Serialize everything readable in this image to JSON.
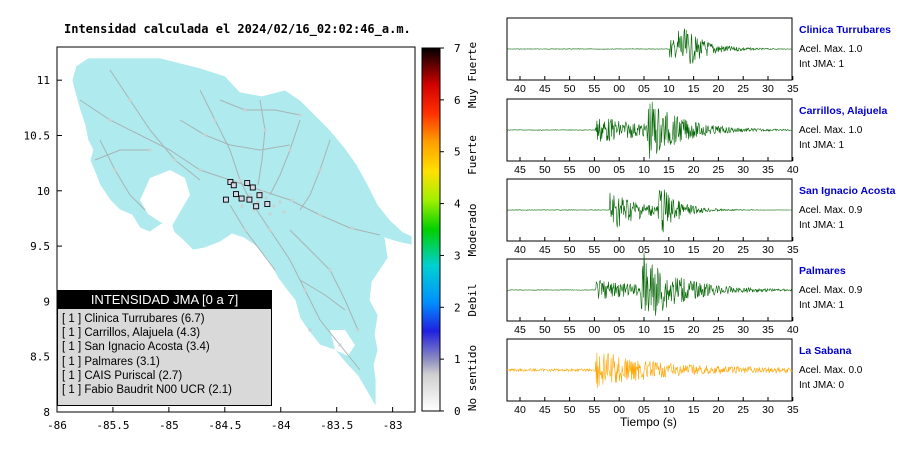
{
  "title": "Intensidad calculada el 2024/02/16_02:02:46_a.m.",
  "map": {
    "x_ticks": [
      "-86",
      "-85.5",
      "-85",
      "-84.5",
      "-84",
      "-83.5",
      "-83"
    ],
    "y_ticks": [
      "11",
      "10.5",
      "10",
      "9.5",
      "9",
      "8.5",
      "8"
    ],
    "xlim": [
      -86,
      -82.8
    ],
    "ylim": [
      8,
      11.3
    ],
    "land_color": "#aeeaee",
    "road_color": "#a8b4b4"
  },
  "colorbar": {
    "ticks": [
      "0",
      "1",
      "2",
      "3",
      "4",
      "5",
      "6",
      "7"
    ],
    "categories": [
      "No sentido",
      "Debil",
      "Moderado",
      "Fuerte",
      "Muy Fuerte"
    ]
  },
  "legend": {
    "title": "INTENSIDAD JMA [0 a 7]",
    "items": [
      "[ 1 ]  Clinica Turrubares (6.7)",
      "[ 1 ]  Carrillos, Alajuela (4.3)",
      "[ 1 ]  San Ignacio Acosta (3.4)",
      "[ 1 ]  Palmares (3.1)",
      "[ 1 ]  CAIS Puriscal (2.7)",
      "[ 1 ]  Fabio Baudrit N00 UCR (2.1)"
    ]
  },
  "waveforms": {
    "xlabel": "Tiempo (s)",
    "stations": [
      {
        "name": "Clinica Turrubares",
        "acel": "Acel. Max. 1.0",
        "jma": "Int JMA: 1",
        "ticks": [
          "40",
          "45",
          "50",
          "55",
          "00",
          "05",
          "10",
          "15",
          "20",
          "25",
          "30",
          "35"
        ],
        "color": "#006400"
      },
      {
        "name": "Carrillos, Alajuela",
        "acel": "Acel. Max. 1.0",
        "jma": "Int JMA: 1",
        "ticks": [
          "45",
          "50",
          "55",
          "00",
          "05",
          "10",
          "15",
          "20",
          "25",
          "30",
          "35",
          "40"
        ],
        "color": "#006400"
      },
      {
        "name": "San Ignacio Acosta",
        "acel": "Acel. Max. 0.9",
        "jma": "Int JMA: 1",
        "ticks": [
          "40",
          "45",
          "50",
          "55",
          "00",
          "05",
          "10",
          "15",
          "20",
          "25",
          "30",
          "35"
        ],
        "color": "#006400"
      },
      {
        "name": "Palmares",
        "acel": "Acel. Max. 0.9",
        "jma": "Int JMA: 1",
        "ticks": [
          "45",
          "50",
          "55",
          "00",
          "05",
          "10",
          "15",
          "20",
          "25",
          "30",
          "35",
          "40"
        ],
        "color": "#006400"
      },
      {
        "name": "La Sabana",
        "acel": "Acel. Max. 0.0",
        "jma": "Int JMA: 0",
        "ticks": [
          "40",
          "45",
          "50",
          "55",
          "00",
          "05",
          "10",
          "15",
          "20",
          "25",
          "30",
          "35"
        ],
        "color": "#ffa500"
      }
    ]
  },
  "chart_data": {
    "type": "scatter",
    "title": "Intensidad calculada el 2024/02/16_02:02:46_a.m.",
    "xlim": [
      -86,
      -82.8
    ],
    "ylim": [
      8,
      11.3
    ],
    "stations": [
      {
        "lon": -84.45,
        "lat": 10.08
      },
      {
        "lon": -84.42,
        "lat": 10.05
      },
      {
        "lon": -84.3,
        "lat": 10.07
      },
      {
        "lon": -84.25,
        "lat": 10.03
      },
      {
        "lon": -84.4,
        "lat": 9.97
      },
      {
        "lon": -84.49,
        "lat": 9.92
      },
      {
        "lon": -84.35,
        "lat": 9.93
      },
      {
        "lon": -84.28,
        "lat": 9.92
      },
      {
        "lon": -84.19,
        "lat": 9.96
      },
      {
        "lon": -84.12,
        "lat": 9.88
      },
      {
        "lon": -84.22,
        "lat": 9.86
      }
    ],
    "waveform_peaks": [
      {
        "station": "Clinica Turrubares",
        "onset": 12,
        "peak": 13
      },
      {
        "station": "Carrillos, Alajuela",
        "onset": 0,
        "peak": 10
      },
      {
        "station": "San Ignacio Acosta",
        "onset": 0,
        "peak": 10
      },
      {
        "station": "Palmares",
        "onset": 3,
        "peak": 10
      },
      {
        "station": "La Sabana",
        "onset": 0,
        "peak": 0
      }
    ]
  }
}
